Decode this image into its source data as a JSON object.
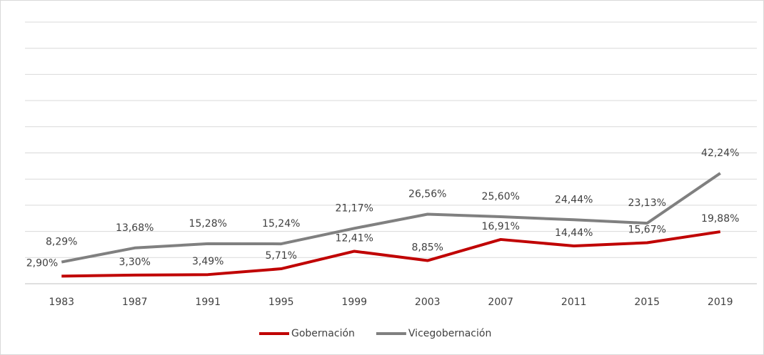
{
  "chart_data": {
    "type": "line",
    "categories": [
      "1983",
      "1987",
      "1991",
      "1995",
      "1999",
      "2003",
      "2007",
      "2011",
      "2015",
      "2019"
    ],
    "series": [
      {
        "name": "Gobernación",
        "color": "#c00000",
        "values": [
          2.9,
          3.3,
          3.49,
          5.71,
          12.41,
          8.85,
          16.91,
          14.44,
          15.67,
          19.88
        ],
        "value_labels": [
          "2,90%",
          "3,30%",
          "3,49%",
          "5,71%",
          "12,41%",
          "8,85%",
          "16,91%",
          "14,44%",
          "15,67%",
          "19,88%"
        ]
      },
      {
        "name": "Vicegobernación",
        "color": "#808080",
        "values": [
          8.29,
          13.68,
          15.28,
          15.24,
          21.17,
          26.56,
          25.6,
          24.44,
          23.13,
          42.24
        ],
        "value_labels": [
          "8,29%",
          "13,68%",
          "15,28%",
          "15,24%",
          "21,17%",
          "26,56%",
          "25,60%",
          "24,44%",
          "23,13%",
          "42,24%"
        ]
      }
    ],
    "ylim": [
      0,
      100
    ],
    "yticks": [
      0,
      10,
      20,
      30,
      40,
      50,
      60,
      70,
      80,
      90,
      100
    ],
    "grid": true,
    "legend": "bottom"
  }
}
